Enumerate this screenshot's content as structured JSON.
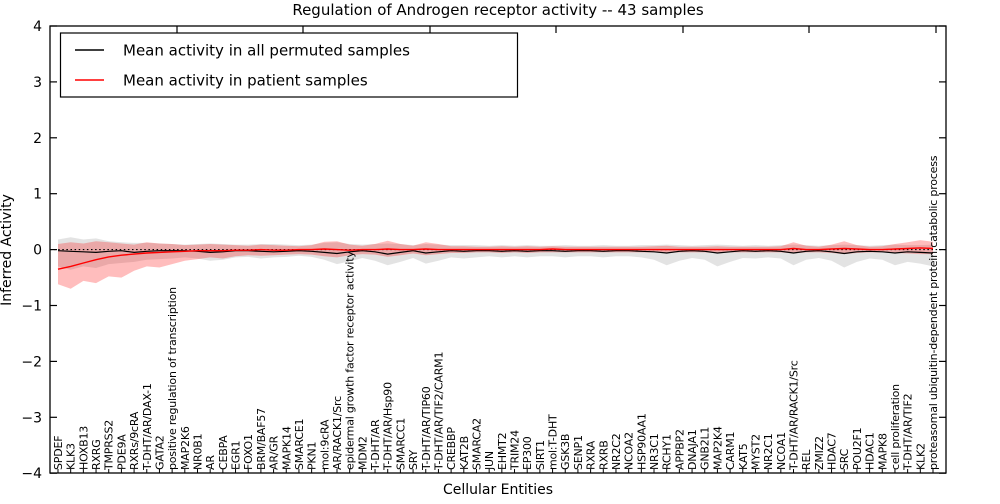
{
  "figure": {
    "background": "#ffffff"
  },
  "chart_data": {
    "type": "line",
    "title": "Regulation of Androgen receptor activity -- 43 samples",
    "xlabel": "Cellular Entities",
    "ylabel": "Inferred Activity",
    "ylim": [
      -4,
      4
    ],
    "yticks": [
      -4,
      -3,
      -2,
      -1,
      0,
      1,
      2,
      3,
      4
    ],
    "grid": false,
    "zero_reference_line": 0,
    "legend_position": "upper-left",
    "legend": [
      "Mean activity in all permuted samples",
      "Mean activity in patient samples"
    ],
    "colors": {
      "permuted_line": "#000000",
      "patient_line": "#ff0000",
      "permuted_band": "#999999",
      "patient_band": "#ff0000",
      "frame": "#000000"
    },
    "categories": [
      "SPDEF",
      "KLK3",
      "HOXB13",
      "RXRG",
      "TMPRSS2",
      "PDE9A",
      "RXRs/9cRA",
      "T-DHT/AR/DAX-1",
      "GATA2",
      "positive regulation of transcription",
      "MAP2K6",
      "NR0B1",
      "AR",
      "CEBPA",
      "EGR1",
      "FOXO1",
      "BRM/BAF57",
      "AR/GR",
      "MAPK14",
      "SMARCE1",
      "PKN1",
      "mol:9cRA",
      "AR/RACK1/Src",
      "epidermal growth factor receptor activity",
      "MDM2",
      "T-DHT/AR",
      "T-DHT/AR/Hsp90",
      "SMARCC1",
      "SRY",
      "T-DHT/AR/TIP60",
      "T-DHT/AR/TIF2/CARM1",
      "CREBBP",
      "KAT2B",
      "SMARCA2",
      "JUN",
      "EHMT2",
      "TRIM24",
      "EP300",
      "SIRT1",
      "mol:T-DHT",
      "GSK3B",
      "SENP1",
      "RXRA",
      "RXRB",
      "NR2C2",
      "NCOA2",
      "HSP90AA1",
      "NR3C1",
      "RCHY1",
      "APPBP2",
      "DNAJA1",
      "GNB2L1",
      "MAP2K4",
      "CARM1",
      "KAT5",
      "MYST2",
      "NR2C1",
      "NCOA1",
      "T-DHT/AR/RACK1/Src",
      "REL",
      "ZMIZ2",
      "HDAC7",
      "SRC",
      "POU2F1",
      "HDAC1",
      "MAPK8",
      "cell proliferation",
      "T-DHT/AR/TIF2",
      "KLK2",
      "proteasomal ubiquitin-dependent protein catabolic process"
    ],
    "series": [
      {
        "name": "Mean activity in all permuted samples",
        "role": "permuted",
        "color": "#000000",
        "values": [
          -0.02,
          -0.03,
          -0.04,
          -0.05,
          -0.03,
          -0.02,
          -0.05,
          -0.03,
          -0.02,
          -0.02,
          -0.02,
          -0.03,
          -0.05,
          -0.04,
          -0.02,
          -0.02,
          -0.03,
          -0.04,
          -0.03,
          -0.02,
          -0.03,
          -0.05,
          -0.07,
          -0.04,
          -0.02,
          -0.04,
          -0.08,
          -0.05,
          -0.02,
          -0.06,
          -0.04,
          -0.02,
          -0.03,
          -0.02,
          -0.02,
          -0.03,
          -0.02,
          -0.03,
          -0.02,
          -0.02,
          -0.03,
          -0.02,
          -0.02,
          -0.03,
          -0.02,
          -0.02,
          -0.03,
          -0.04,
          -0.06,
          -0.03,
          -0.02,
          -0.03,
          -0.06,
          -0.04,
          -0.02,
          -0.03,
          -0.02,
          -0.03,
          -0.06,
          -0.03,
          -0.02,
          -0.04,
          -0.07,
          -0.04,
          -0.03,
          -0.04,
          -0.06,
          -0.04,
          -0.05,
          -0.06
        ],
        "band_upper": [
          0.18,
          0.22,
          0.18,
          0.2,
          0.15,
          0.13,
          0.12,
          0.12,
          0.11,
          0.1,
          0.09,
          0.1,
          0.11,
          0.1,
          0.09,
          0.09,
          0.1,
          0.1,
          0.09,
          0.08,
          0.09,
          0.12,
          0.13,
          0.1,
          0.09,
          0.1,
          0.11,
          0.1,
          0.08,
          0.1,
          0.09,
          0.08,
          0.08,
          0.08,
          0.07,
          0.08,
          0.07,
          0.08,
          0.07,
          0.07,
          0.08,
          0.07,
          0.07,
          0.08,
          0.07,
          0.07,
          0.08,
          0.08,
          0.09,
          0.08,
          0.07,
          0.08,
          0.09,
          0.08,
          0.07,
          0.08,
          0.07,
          0.08,
          0.09,
          0.08,
          0.07,
          0.08,
          0.09,
          0.08,
          0.07,
          0.08,
          0.09,
          0.08,
          0.08,
          0.09
        ],
        "band_lower": [
          -0.3,
          -0.36,
          -0.3,
          -0.33,
          -0.26,
          -0.24,
          -0.22,
          -0.18,
          -0.17,
          -0.16,
          -0.14,
          -0.16,
          -0.2,
          -0.18,
          -0.14,
          -0.13,
          -0.16,
          -0.14,
          -0.13,
          -0.11,
          -0.13,
          -0.18,
          -0.26,
          -0.21,
          -0.15,
          -0.2,
          -0.28,
          -0.22,
          -0.15,
          -0.25,
          -0.2,
          -0.14,
          -0.16,
          -0.14,
          -0.12,
          -0.14,
          -0.12,
          -0.14,
          -0.12,
          -0.12,
          -0.14,
          -0.12,
          -0.12,
          -0.14,
          -0.12,
          -0.12,
          -0.14,
          -0.18,
          -0.28,
          -0.2,
          -0.15,
          -0.18,
          -0.3,
          -0.22,
          -0.15,
          -0.16,
          -0.14,
          -0.16,
          -0.28,
          -0.18,
          -0.15,
          -0.2,
          -0.32,
          -0.22,
          -0.16,
          -0.18,
          -0.28,
          -0.22,
          -0.25,
          -0.3
        ]
      },
      {
        "name": "Mean activity in patient samples",
        "role": "patient",
        "color": "#ff0000",
        "values": [
          -0.35,
          -0.3,
          -0.24,
          -0.18,
          -0.13,
          -0.1,
          -0.08,
          -0.06,
          -0.05,
          -0.04,
          -0.03,
          -0.02,
          -0.02,
          -0.02,
          -0.01,
          -0.01,
          0.0,
          -0.01,
          -0.01,
          0.0,
          0.0,
          0.01,
          0.0,
          -0.01,
          0.0,
          0.0,
          0.01,
          0.0,
          0.0,
          0.01,
          0.0,
          0.0,
          0.0,
          0.0,
          0.0,
          0.0,
          0.0,
          0.0,
          0.0,
          0.01,
          0.0,
          0.0,
          0.0,
          0.0,
          0.0,
          0.0,
          0.0,
          0.0,
          0.0,
          0.0,
          0.0,
          0.0,
          0.0,
          0.0,
          0.0,
          0.0,
          0.0,
          0.0,
          0.02,
          0.0,
          0.0,
          0.01,
          0.02,
          0.01,
          0.0,
          0.0,
          0.01,
          0.02,
          0.03,
          0.02
        ],
        "band_upper": [
          0.1,
          0.13,
          0.11,
          0.15,
          0.13,
          0.11,
          0.09,
          0.13,
          0.11,
          0.1,
          0.08,
          0.09,
          0.1,
          0.09,
          0.08,
          0.07,
          0.09,
          0.08,
          0.07,
          0.06,
          0.08,
          0.14,
          0.15,
          0.09,
          0.07,
          0.1,
          0.16,
          0.1,
          0.07,
          0.13,
          0.1,
          0.06,
          0.06,
          0.05,
          0.05,
          0.06,
          0.05,
          0.06,
          0.05,
          0.06,
          0.05,
          0.05,
          0.05,
          0.05,
          0.05,
          0.05,
          0.05,
          0.06,
          0.07,
          0.05,
          0.05,
          0.05,
          0.06,
          0.05,
          0.05,
          0.05,
          0.05,
          0.06,
          0.13,
          0.07,
          0.05,
          0.09,
          0.15,
          0.08,
          0.05,
          0.06,
          0.1,
          0.13,
          0.17,
          0.14
        ],
        "band_lower": [
          -0.62,
          -0.7,
          -0.56,
          -0.6,
          -0.48,
          -0.5,
          -0.38,
          -0.3,
          -0.32,
          -0.26,
          -0.2,
          -0.17,
          -0.14,
          -0.16,
          -0.12,
          -0.1,
          -0.11,
          -0.1,
          -0.09,
          -0.08,
          -0.09,
          -0.12,
          -0.14,
          -0.1,
          -0.08,
          -0.09,
          -0.13,
          -0.1,
          -0.07,
          -0.1,
          -0.08,
          -0.06,
          -0.06,
          -0.05,
          -0.05,
          -0.06,
          -0.05,
          -0.06,
          -0.05,
          -0.05,
          -0.05,
          -0.05,
          -0.05,
          -0.05,
          -0.05,
          -0.05,
          -0.05,
          -0.05,
          -0.06,
          -0.05,
          -0.05,
          -0.05,
          -0.06,
          -0.05,
          -0.05,
          -0.05,
          -0.05,
          -0.05,
          -0.07,
          -0.05,
          -0.05,
          -0.06,
          -0.08,
          -0.06,
          -0.05,
          -0.05,
          -0.06,
          -0.07,
          -0.08,
          -0.08
        ]
      }
    ]
  }
}
